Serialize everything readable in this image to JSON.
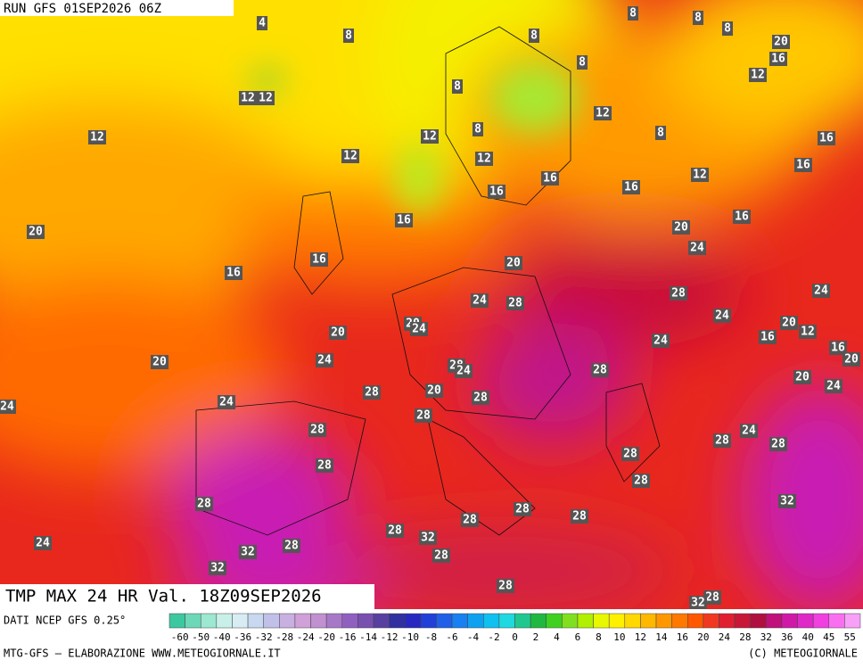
{
  "header": {
    "run": "RUN GFS 01SEP2026 06Z",
    "title": "TMP MAX 24 HR Val. 18Z09SEP2026"
  },
  "footer": {
    "source": "DATI NCEP GFS 0.25°",
    "credit": "MTG-GFS — ELABORAZIONE WWW.METEOGIORNALE.IT",
    "copyright": "(C) METEOGIORNALE"
  },
  "scale_labels": [
    -60,
    -50,
    -40,
    -36,
    -32,
    -28,
    -24,
    -20,
    -16,
    -14,
    -12,
    -10,
    -8,
    -6,
    -4,
    -2,
    0,
    2,
    4,
    6,
    8,
    10,
    12,
    14,
    16,
    20,
    24,
    28,
    32,
    36,
    40,
    45,
    55
  ],
  "map": {
    "contour_labels": [
      4,
      8,
      8,
      8,
      8,
      8,
      20,
      16,
      8,
      12,
      12,
      12,
      8,
      12,
      12,
      8,
      8,
      12,
      16,
      12,
      12,
      16,
      12,
      16,
      16,
      16,
      16,
      16,
      20,
      20,
      16,
      24,
      20,
      16,
      24,
      28,
      28,
      24,
      24,
      20,
      24,
      20,
      20,
      16,
      12,
      24,
      16,
      20,
      20,
      24,
      28,
      24,
      28,
      20,
      24,
      28,
      20,
      28,
      24,
      24,
      28,
      28,
      24,
      28,
      28,
      28,
      28,
      28,
      32,
      28,
      28,
      28,
      28,
      28,
      32,
      24,
      28,
      32,
      28,
      32,
      28,
      28,
      32
    ]
  }
}
